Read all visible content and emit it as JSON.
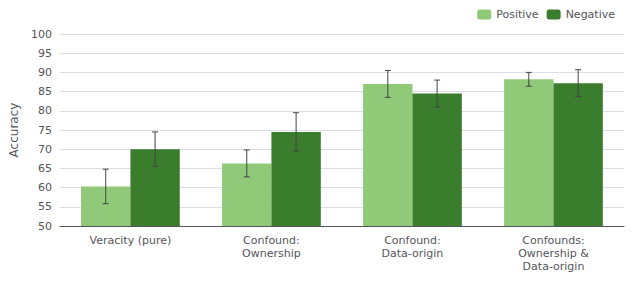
{
  "chart_data": {
    "type": "bar",
    "categories": [
      "Veracity (pure)",
      "Confound:\nOwnership",
      "Confound:\nData-origin",
      "Confounds:\nOwnership &\nData-origin"
    ],
    "series": [
      {
        "name": "Positive",
        "color": "#90C978",
        "values": [
          60.3,
          66.3,
          87.0,
          88.2
        ],
        "errors": [
          4.5,
          3.5,
          3.5,
          1.8
        ]
      },
      {
        "name": "Negative",
        "color": "#3A7D2C",
        "values": [
          70.0,
          74.5,
          84.5,
          87.2
        ],
        "errors": [
          4.5,
          5.0,
          3.5,
          3.5
        ]
      }
    ],
    "ylabel": "Accuracy",
    "ylim": [
      50,
      100
    ],
    "yticks": [
      50,
      55,
      60,
      65,
      70,
      75,
      80,
      85,
      90,
      95,
      100
    ],
    "grid": true,
    "legend": "upper right"
  }
}
